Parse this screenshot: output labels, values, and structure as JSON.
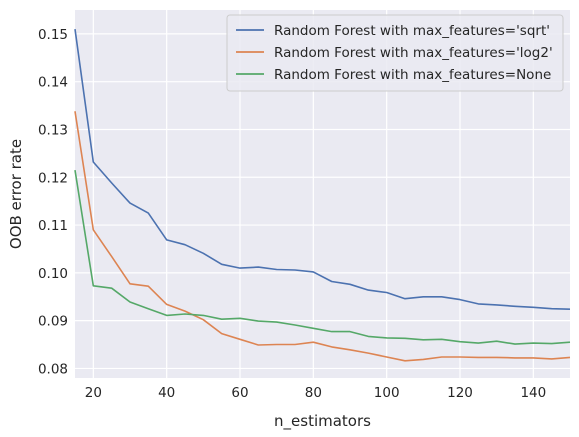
{
  "chart_data": {
    "type": "line",
    "xlabel": "n_estimators",
    "ylabel": "OOB error rate",
    "xlim": [
      15,
      150
    ],
    "ylim": [
      0.078,
      0.155
    ],
    "xticks": [
      20,
      40,
      60,
      80,
      100,
      120,
      140
    ],
    "yticks": [
      0.08,
      0.09,
      0.1,
      0.11,
      0.12,
      0.13,
      0.14,
      0.15
    ],
    "grid": true,
    "legend_position": "top-right",
    "series": [
      {
        "name": "Random Forest with max_features='sqrt'",
        "color": "#4c72b0",
        "x": [
          15,
          20,
          25,
          30,
          35,
          40,
          45,
          50,
          55,
          60,
          65,
          70,
          75,
          80,
          85,
          90,
          95,
          100,
          105,
          110,
          115,
          120,
          125,
          130,
          135,
          140,
          145,
          150
        ],
        "y": [
          0.151,
          0.1232,
          0.1188,
          0.1146,
          0.1125,
          0.1069,
          0.1059,
          0.1041,
          0.1018,
          0.101,
          0.1012,
          0.1007,
          0.1006,
          0.1002,
          0.0982,
          0.0976,
          0.0964,
          0.0959,
          0.0946,
          0.095,
          0.095,
          0.0944,
          0.0935,
          0.0933,
          0.093,
          0.0928,
          0.0925,
          0.0924
        ]
      },
      {
        "name": "Random Forest with max_features='log2'",
        "color": "#dd8452",
        "x": [
          15,
          20,
          25,
          30,
          35,
          40,
          45,
          50,
          55,
          60,
          65,
          70,
          75,
          80,
          85,
          90,
          95,
          100,
          105,
          110,
          115,
          120,
          125,
          130,
          135,
          140,
          145,
          150
        ],
        "y": [
          0.1338,
          0.109,
          0.1034,
          0.0977,
          0.0972,
          0.0934,
          0.092,
          0.0902,
          0.0873,
          0.0861,
          0.0849,
          0.085,
          0.085,
          0.0855,
          0.0845,
          0.0839,
          0.0832,
          0.0824,
          0.0816,
          0.0819,
          0.0824,
          0.0824,
          0.0823,
          0.0823,
          0.0822,
          0.0822,
          0.082,
          0.0823
        ]
      },
      {
        "name": "Random Forest with max_features=None",
        "color": "#55a868",
        "x": [
          15,
          20,
          25,
          30,
          35,
          40,
          45,
          50,
          55,
          60,
          65,
          70,
          75,
          80,
          85,
          90,
          95,
          100,
          105,
          110,
          115,
          120,
          125,
          130,
          135,
          140,
          145,
          150
        ],
        "y": [
          0.1215,
          0.0973,
          0.0968,
          0.0939,
          0.0925,
          0.0911,
          0.0914,
          0.0911,
          0.0903,
          0.0905,
          0.0899,
          0.0897,
          0.0891,
          0.0884,
          0.0877,
          0.0877,
          0.0867,
          0.0864,
          0.0863,
          0.086,
          0.0861,
          0.0856,
          0.0853,
          0.0857,
          0.0851,
          0.0853,
          0.0852,
          0.0855
        ]
      }
    ]
  }
}
